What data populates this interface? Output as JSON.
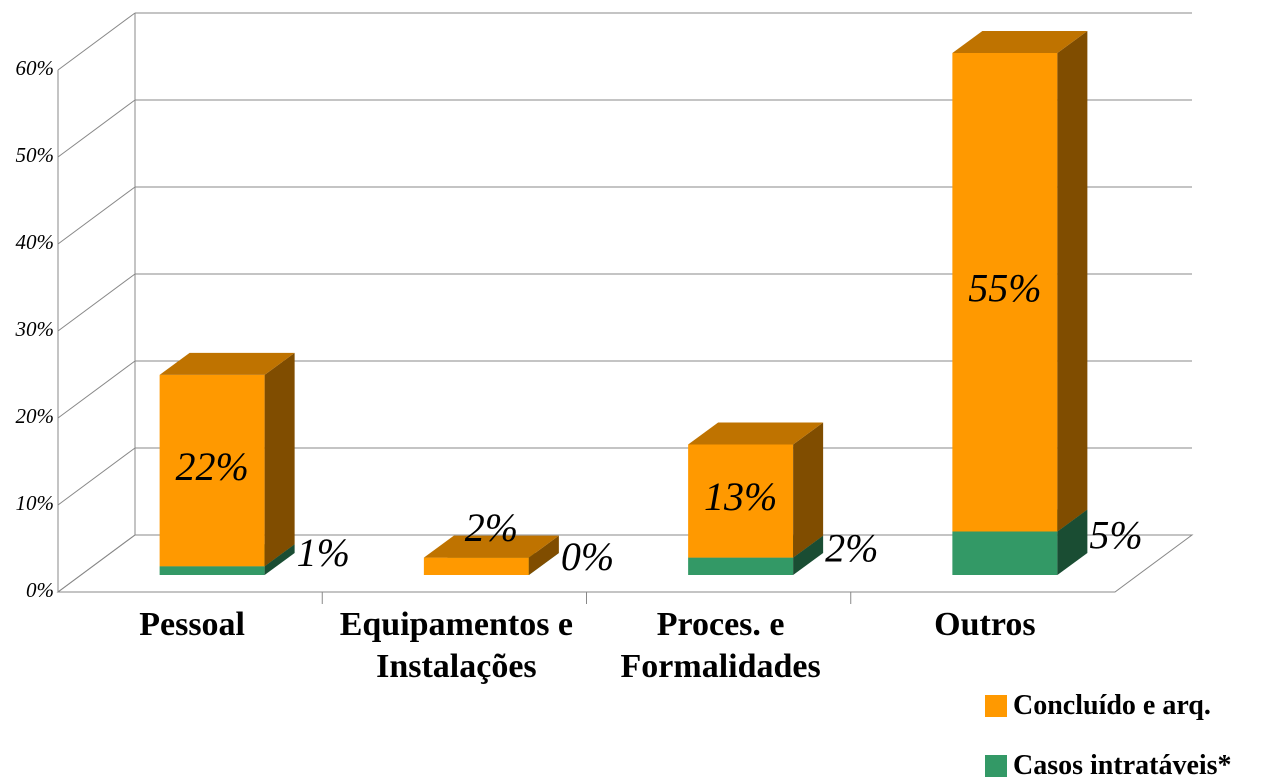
{
  "chart_data": {
    "type": "bar3d-stacked",
    "categories": [
      "Pessoal",
      "Equipamentos e Instalações",
      "Proces. e Formalidades",
      "Outros"
    ],
    "series": [
      {
        "name": "Casos intratáveis*",
        "color": "#339966",
        "values": [
          1,
          0,
          2,
          5
        ],
        "value_labels": [
          "1%",
          "0%",
          "2%",
          "5%"
        ]
      },
      {
        "name": "Concluído e arq.",
        "color": "#FF9900",
        "values": [
          22,
          2,
          13,
          55
        ],
        "value_labels": [
          "22%",
          "2%",
          "13%",
          "55%"
        ]
      }
    ],
    "ylim": [
      0,
      60
    ],
    "yticks": [
      {
        "value": 0,
        "label": "0%"
      },
      {
        "value": 10,
        "label": "10%"
      },
      {
        "value": 20,
        "label": "20%"
      },
      {
        "value": 30,
        "label": "30%"
      },
      {
        "value": 40,
        "label": "40%"
      },
      {
        "value": 50,
        "label": "50%"
      },
      {
        "value": 60,
        "label": "60%"
      }
    ],
    "grid": true
  }
}
